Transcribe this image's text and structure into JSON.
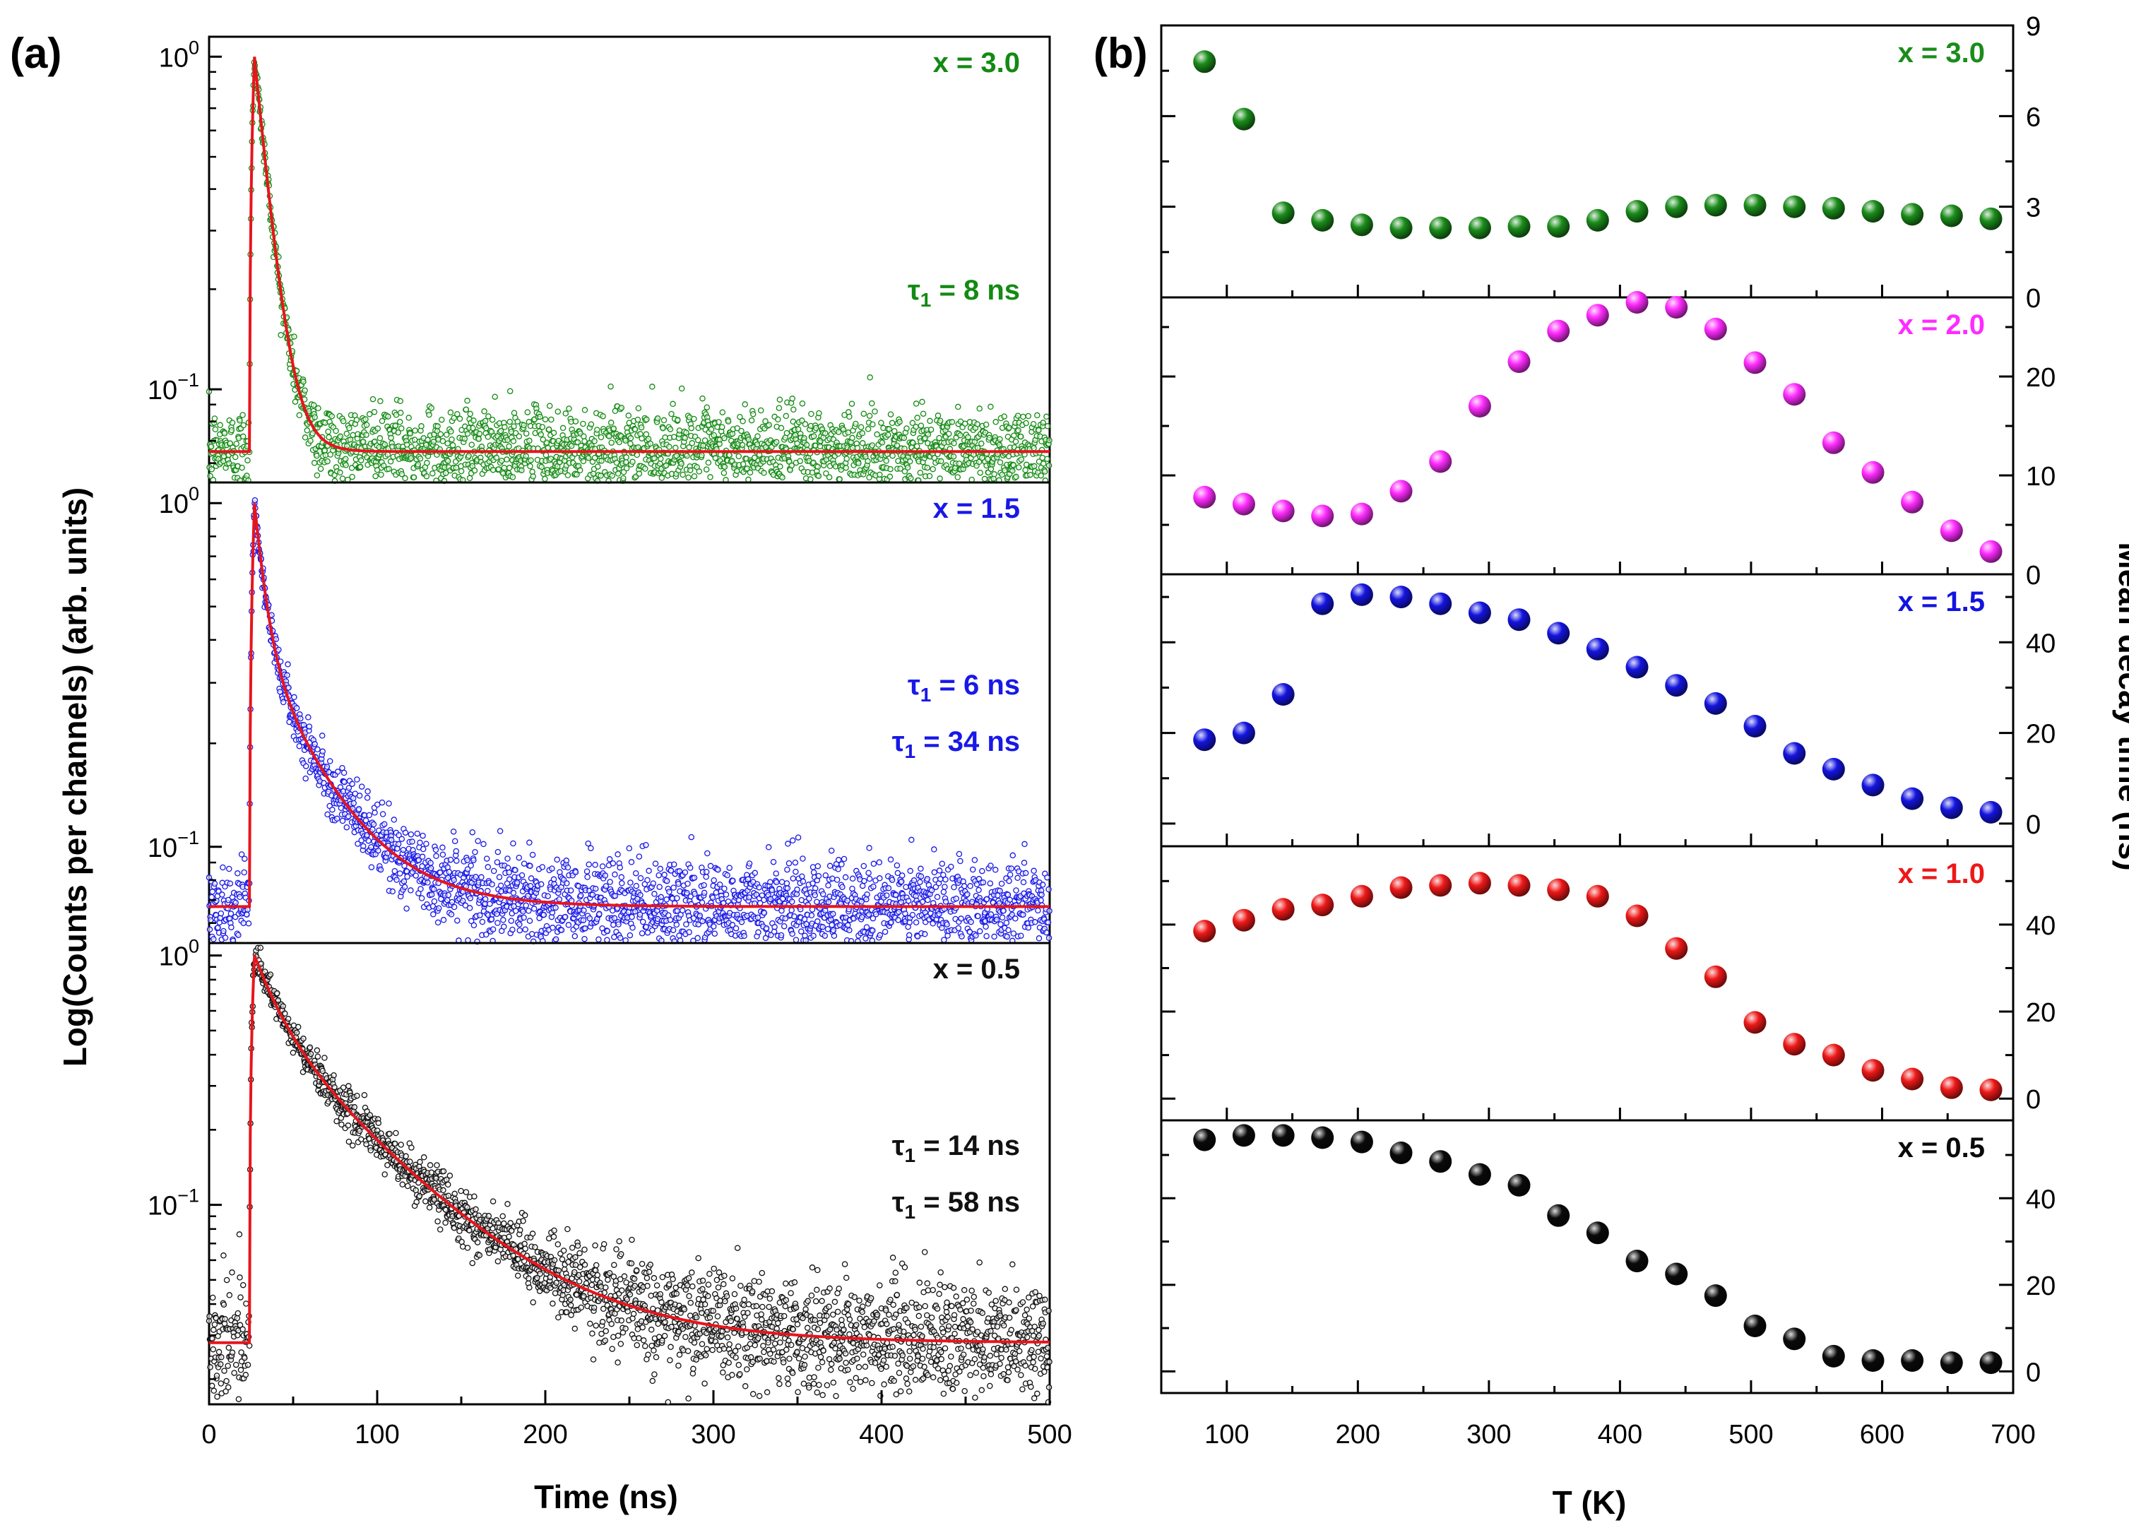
{
  "figure": {
    "panel_a_label": "(a)",
    "panel_b_label": "(b)"
  },
  "chart_data": [
    {
      "type": "scatter",
      "id": "panel-a",
      "title": "(a)",
      "xlabel": "Time (ns)",
      "ylabel": "Log(Counts per channels) (arb. units)",
      "xlim": [
        0,
        500
      ],
      "xticks": [
        0,
        100,
        200,
        300,
        400,
        500
      ],
      "yscale": "log",
      "ytick_labels": [
        "10^0",
        "10^-1"
      ],
      "subplots": [
        {
          "label": "x = 3.0",
          "color": "#138a13",
          "ylim_log10": [
            -1.28,
            0.06
          ],
          "baseline": 0.065,
          "peak_time_ns": 27,
          "onset_time_ns": 24,
          "noise_sigma_log10": 0.065,
          "components": [
            {
              "amplitude": 1.0,
              "tau_ns": 8
            }
          ],
          "annotations": [
            "τ1 = 8 ns"
          ]
        },
        {
          "label": "x = 1.5",
          "color": "#1818e8",
          "ylim_log10": [
            -1.28,
            0.06
          ],
          "baseline": 0.067,
          "peak_time_ns": 27,
          "onset_time_ns": 24,
          "noise_sigma_log10": 0.07,
          "components": [
            {
              "amplitude": 0.65,
              "tau_ns": 6
            },
            {
              "amplitude": 0.35,
              "tau_ns": 34
            }
          ],
          "annotations": [
            "τ1 = 6 ns",
            "τ1 = 34 ns"
          ]
        },
        {
          "label": "x = 0.5",
          "color": "#111111",
          "ylim_log10": [
            -1.8,
            0.05
          ],
          "baseline": 0.028,
          "peak_time_ns": 27,
          "onset_time_ns": 24,
          "noise_sigma_log10": 0.12,
          "components": [
            {
              "amplitude": 0.45,
              "tau_ns": 14
            },
            {
              "amplitude": 0.55,
              "tau_ns": 58
            }
          ],
          "annotations": [
            "τ1 = 14 ns",
            "τ1 = 58 ns"
          ]
        }
      ],
      "fit_color": "#e8141c"
    },
    {
      "type": "scatter",
      "id": "panel-b",
      "title": "(b)",
      "xlabel": "T (K)",
      "ylabel": "Mean decay time (ns)",
      "xlim": [
        50,
        700
      ],
      "xticks": [
        100,
        200,
        300,
        400,
        500,
        600,
        700
      ],
      "x": [
        83,
        113,
        143,
        173,
        203,
        233,
        263,
        293,
        323,
        353,
        383,
        413,
        443,
        473,
        503,
        533,
        563,
        593,
        623,
        653,
        683
      ],
      "subplots": [
        {
          "label": "x = 3.0",
          "color": "#1a8c1a",
          "ylim": [
            0,
            9
          ],
          "yticks": [
            0,
            3,
            6,
            9
          ],
          "values": [
            7.8,
            5.9,
            2.8,
            2.55,
            2.4,
            2.3,
            2.3,
            2.3,
            2.35,
            2.35,
            2.55,
            2.85,
            3.0,
            3.05,
            3.05,
            3.0,
            2.95,
            2.85,
            2.75,
            2.7,
            2.6
          ]
        },
        {
          "label": "x = 2.0",
          "color": "#ff2bff",
          "ylim": [
            0,
            28
          ],
          "yticks": [
            0,
            10,
            20
          ],
          "values": [
            7.8,
            7.1,
            6.4,
            5.9,
            6.1,
            8.4,
            11.4,
            17.0,
            21.5,
            24.6,
            26.2,
            27.5,
            27.0,
            24.8,
            21.4,
            18.2,
            13.3,
            10.3,
            7.3,
            4.4,
            2.3
          ]
        },
        {
          "label": "x = 1.5",
          "color": "#1414e0",
          "ylim": [
            -5,
            55
          ],
          "yticks": [
            0,
            20,
            40
          ],
          "values": [
            18.5,
            20.0,
            28.5,
            48.5,
            50.5,
            50.0,
            48.5,
            46.5,
            45.0,
            42.0,
            38.5,
            34.5,
            30.5,
            26.5,
            21.5,
            15.5,
            12.0,
            8.5,
            5.5,
            3.5,
            2.5
          ]
        },
        {
          "label": "x = 1.0",
          "color": "#ee1818",
          "ylim": [
            -5,
            58
          ],
          "yticks": [
            0,
            20,
            40
          ],
          "values": [
            38.5,
            41.0,
            43.5,
            44.5,
            46.5,
            48.5,
            49.0,
            49.5,
            49.0,
            48.0,
            46.5,
            42.0,
            34.5,
            28.0,
            17.5,
            12.5,
            10.0,
            6.5,
            4.5,
            2.5,
            2.0
          ]
        },
        {
          "label": "x = 0.5",
          "color": "#0a0a0a",
          "ylim": [
            -5,
            58
          ],
          "yticks": [
            0,
            20,
            40
          ],
          "values": [
            53.5,
            54.5,
            54.5,
            54.0,
            53.0,
            50.5,
            48.5,
            45.5,
            43.0,
            36.0,
            32.0,
            25.5,
            22.5,
            17.5,
            10.5,
            7.5,
            3.5,
            2.5,
            2.5,
            2.0,
            2.0
          ]
        }
      ]
    }
  ]
}
